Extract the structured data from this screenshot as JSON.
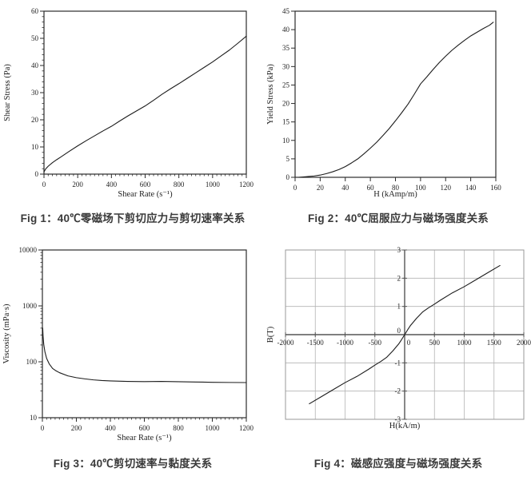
{
  "page": {
    "background": "#ffffff"
  },
  "colors": {
    "curve": "#1c1c1c",
    "axis_box": "#2b2b2b",
    "grid": "#b4b4b4",
    "center_axis": "#555555",
    "outer_box_light": "#9a9a9a",
    "caption_text": "#3a3a3a"
  },
  "chart_data": [
    {
      "type": "line",
      "title": "Fig 1：40℃零磁场下剪切应力与剪切速率关系",
      "xlabel": "Shear Rate (s⁻¹)",
      "ylabel": "Shear Stress (Pa)",
      "xlim": [
        0,
        1200
      ],
      "ylim": [
        0,
        60
      ],
      "xticks": [
        0,
        200,
        400,
        600,
        800,
        1000,
        1200
      ],
      "yticks": [
        0,
        10,
        20,
        30,
        40,
        50,
        60
      ],
      "x_minor_step": 25,
      "y_minor_step": 2,
      "yscale": "linear",
      "grid": false,
      "axes_style": "box",
      "legend": "none",
      "series": [
        {
          "name": "shear stress",
          "x": [
            0,
            10,
            25,
            50,
            75,
            100,
            150,
            200,
            250,
            300,
            350,
            400,
            450,
            500,
            550,
            600,
            650,
            700,
            750,
            800,
            850,
            900,
            950,
            1000,
            1050,
            1100,
            1150,
            1200
          ],
          "y": [
            0.8,
            1.9,
            2.9,
            4.2,
            5.3,
            6.3,
            8.4,
            10.4,
            12.3,
            14.1,
            15.9,
            17.6,
            19.6,
            21.5,
            23.3,
            25.1,
            27.2,
            29.4,
            31.4,
            33.3,
            35.3,
            37.3,
            39.3,
            41.3,
            43.5,
            45.7,
            48.2,
            50.8
          ]
        }
      ]
    },
    {
      "type": "line",
      "title": "Fig 2：40℃屈服应力与磁场强度关系",
      "xlabel": "H (kAmp/m)",
      "ylabel": "Yield Stress (kPa)",
      "xlim": [
        0,
        160
      ],
      "ylim": [
        0,
        45
      ],
      "xticks": [
        0,
        20,
        40,
        60,
        80,
        100,
        120,
        140,
        160
      ],
      "yticks": [
        0,
        5,
        10,
        15,
        20,
        25,
        30,
        35,
        40,
        45
      ],
      "x_minor_step": 0,
      "y_minor_step": 0,
      "yscale": "linear",
      "grid": false,
      "axes_style": "box",
      "legend": "none",
      "series": [
        {
          "name": "yield stress",
          "x": [
            3,
            10,
            15,
            20,
            25,
            30,
            35,
            40,
            45,
            50,
            55,
            60,
            65,
            70,
            75,
            80,
            85,
            90,
            95,
            100,
            105,
            110,
            115,
            120,
            125,
            130,
            135,
            140,
            145,
            150,
            155,
            158
          ],
          "y": [
            0,
            0.2,
            0.35,
            0.6,
            1.0,
            1.5,
            2.1,
            2.9,
            3.9,
            5.0,
            6.4,
            7.9,
            9.5,
            11.3,
            13.2,
            15.3,
            17.5,
            19.8,
            22.5,
            25.3,
            27.2,
            29.2,
            31.1,
            32.8,
            34.4,
            35.8,
            37.1,
            38.3,
            39.3,
            40.3,
            41.2,
            42.0
          ]
        }
      ]
    },
    {
      "type": "line",
      "title": "Fig 3：40℃剪切速率与黏度关系",
      "xlabel": "Shear Rate (s⁻¹)",
      "ylabel": "Viscosity (mPa·s)",
      "xlim": [
        0,
        1200
      ],
      "ylim": [
        10,
        10000
      ],
      "xticks": [
        0,
        200,
        400,
        600,
        800,
        1000,
        1200
      ],
      "yticks": [
        10,
        100,
        1000,
        10000
      ],
      "x_minor_step": 25,
      "y_minor_step": 0,
      "y_minor_log": true,
      "yscale": "log",
      "grid": false,
      "axes_style": "box",
      "legend": "none",
      "series": [
        {
          "name": "viscosity",
          "x": [
            2,
            4,
            8,
            15,
            25,
            40,
            60,
            80,
            100,
            150,
            200,
            250,
            300,
            350,
            400,
            500,
            600,
            700,
            800,
            900,
            1000,
            1100,
            1200
          ],
          "y": [
            400,
            290,
            205,
            150,
            115,
            92,
            76,
            69,
            64,
            56,
            52,
            49.5,
            47.5,
            46.3,
            45.5,
            44.6,
            44.2,
            44.5,
            44,
            43.5,
            43,
            42.7,
            42.5
          ]
        }
      ]
    },
    {
      "type": "line",
      "title": "Fig 4：磁感应强度与磁场强度关系",
      "xlabel": "H(kA/m)",
      "ylabel": "B(T)",
      "xlim": [
        -2000,
        2000
      ],
      "ylim": [
        -3,
        3
      ],
      "xticks": [
        -2000,
        -1500,
        -1000,
        -500,
        0,
        500,
        1000,
        1500,
        2000
      ],
      "yticks": [
        -3,
        -2,
        -1,
        0,
        1,
        2,
        3
      ],
      "x_minor_step": 0,
      "y_minor_step": 0,
      "yscale": "linear",
      "grid": true,
      "axes_style": "centered",
      "legend": "none",
      "series": [
        {
          "name": "B-H curve",
          "x": [
            -1600,
            -1400,
            -1200,
            -1000,
            -800,
            -600,
            -500,
            -400,
            -300,
            -200,
            -100,
            -50,
            0,
            50,
            100,
            200,
            300,
            400,
            500,
            600,
            800,
            1000,
            1200,
            1400,
            1600
          ],
          "y": [
            -2.45,
            -2.2,
            -1.95,
            -1.7,
            -1.48,
            -1.22,
            -1.08,
            -0.95,
            -0.8,
            -0.58,
            -0.33,
            -0.17,
            0,
            0.17,
            0.33,
            0.58,
            0.8,
            0.95,
            1.08,
            1.22,
            1.48,
            1.7,
            1.95,
            2.2,
            2.45
          ]
        }
      ]
    }
  ]
}
